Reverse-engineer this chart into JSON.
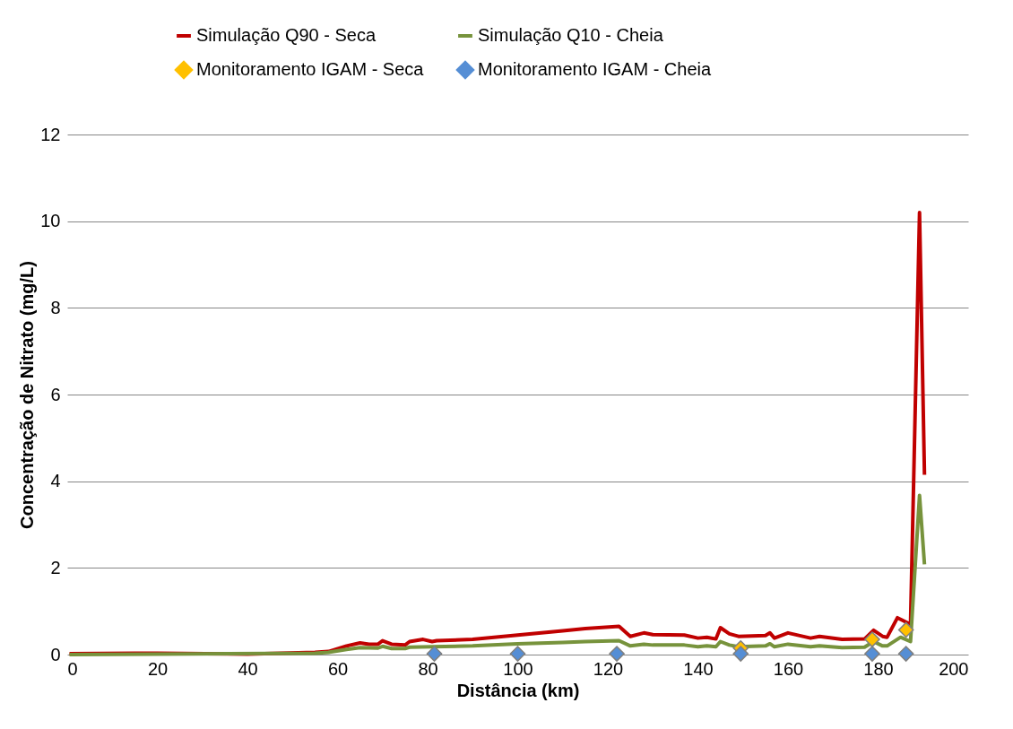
{
  "chart_data": {
    "type": "line",
    "xlabel": "Distância (km)",
    "ylabel": "Concentração de Nitrato (mg/L)",
    "xlim": [
      0,
      200
    ],
    "xticks": [
      0,
      20,
      40,
      60,
      80,
      100,
      120,
      140,
      160,
      180,
      200
    ],
    "ylim": [
      0,
      12
    ],
    "yticks": [
      0,
      2,
      4,
      6,
      8,
      10,
      12
    ],
    "grid": "y",
    "legend": "top",
    "series": [
      {
        "name": "Simulação Q90 - Seca",
        "type": "line",
        "color": "#c00000",
        "marker": "none",
        "x": [
          0.5,
          15,
          20,
          40,
          55,
          58,
          62,
          65,
          67,
          69,
          70,
          72,
          75,
          76,
          79,
          81,
          82,
          90,
          100,
          110,
          115,
          122.5,
          125,
          128,
          130,
          137,
          140,
          142,
          144,
          145,
          147,
          149,
          155,
          156,
          157,
          160,
          165,
          167,
          172,
          177,
          179,
          181,
          182,
          184.3,
          187.2,
          189.2,
          190.3
        ],
        "values": [
          0.02,
          0.03,
          0.03,
          0.01,
          0.05,
          0.07,
          0.2,
          0.27,
          0.24,
          0.24,
          0.32,
          0.24,
          0.22,
          0.3,
          0.35,
          0.3,
          0.32,
          0.35,
          0.45,
          0.55,
          0.6,
          0.65,
          0.42,
          0.5,
          0.46,
          0.45,
          0.38,
          0.4,
          0.36,
          0.62,
          0.48,
          0.42,
          0.44,
          0.5,
          0.38,
          0.5,
          0.38,
          0.42,
          0.35,
          0.36,
          0.56,
          0.42,
          0.4,
          0.85,
          0.7,
          10.2,
          4.15
        ]
      },
      {
        "name": "Simulação Q10 - Cheia",
        "type": "line",
        "color": "#77933c",
        "marker": "none",
        "x": [
          0.5,
          20,
          55,
          58,
          62,
          65,
          69,
          70,
          72,
          75,
          76,
          81,
          90,
          100,
          110,
          115,
          122.5,
          125,
          128,
          130,
          137,
          140,
          142,
          144,
          145,
          147,
          149,
          155,
          156,
          157,
          160,
          165,
          167,
          172,
          177,
          179,
          181,
          182,
          185,
          187.2,
          189.2,
          190.3
        ],
        "values": [
          0.0,
          0.01,
          0.03,
          0.05,
          0.12,
          0.16,
          0.15,
          0.19,
          0.14,
          0.14,
          0.17,
          0.18,
          0.2,
          0.25,
          0.28,
          0.3,
          0.32,
          0.2,
          0.24,
          0.22,
          0.22,
          0.18,
          0.2,
          0.18,
          0.3,
          0.22,
          0.18,
          0.2,
          0.25,
          0.18,
          0.24,
          0.18,
          0.2,
          0.16,
          0.17,
          0.3,
          0.2,
          0.2,
          0.4,
          0.3,
          3.67,
          2.08
        ]
      },
      {
        "name": "Monitoramento IGAM - Seca",
        "type": "scatter",
        "color": "#ffc000",
        "marker": "diamond",
        "x": [
          149.5,
          178.7,
          186.2
        ],
        "values": [
          0.15,
          0.35,
          0.57
        ]
      },
      {
        "name": "Monitoramento IGAM - Cheia",
        "type": "scatter",
        "color": "#558ed5",
        "marker": "diamond",
        "x": [
          81.5,
          100,
          122,
          149.5,
          178.7,
          186.2
        ],
        "values": [
          0.02,
          0.02,
          0.02,
          0.02,
          0.02,
          0.02
        ]
      }
    ]
  }
}
